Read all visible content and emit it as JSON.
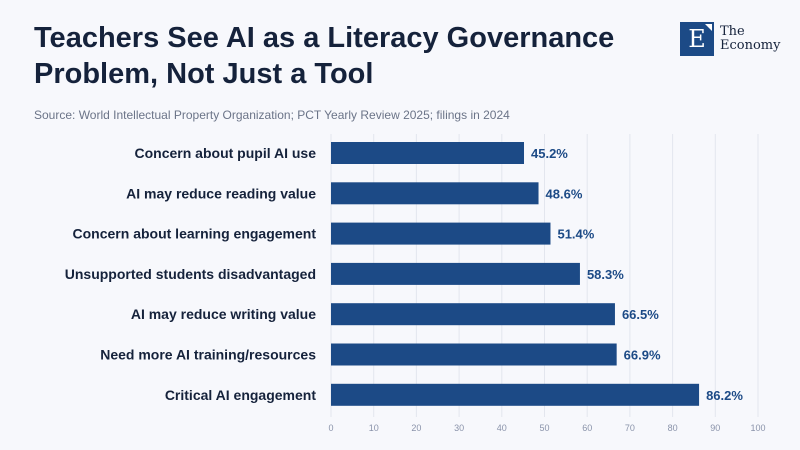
{
  "header": {
    "title": "Teachers See AI as a Literacy Governance Problem, Not Just a Tool",
    "source": "Source: World Intellectual Property Organization; PCT Yearly Review 2025; filings in 2024",
    "logo_letter": "E",
    "logo_line1": "The",
    "logo_line2": "Economy"
  },
  "colors": {
    "bar": "#1c4a86",
    "label": "#15223b",
    "value": "#1c4a86",
    "grid": "#e3e6ee",
    "tick": "#8a93aa"
  },
  "chart_data": {
    "type": "bar",
    "orientation": "horizontal",
    "categories": [
      "Concern about pupil AI use",
      "AI may reduce reading value",
      "Concern about learning engagement",
      "Unsupported students disadvantaged",
      "AI may reduce writing value",
      "Need more AI training/resources",
      "Critical AI engagement"
    ],
    "values": [
      45.2,
      48.6,
      51.4,
      58.3,
      66.5,
      66.9,
      86.2
    ],
    "value_labels": [
      "45.2%",
      "48.6%",
      "51.4%",
      "58.3%",
      "66.5%",
      "66.9%",
      "86.2%"
    ],
    "xlim": [
      0,
      100
    ],
    "xticks": [
      0,
      10,
      20,
      30,
      40,
      50,
      60,
      70,
      80,
      90,
      100
    ],
    "xtick_labels": [
      "0",
      "10",
      "20",
      "30",
      "40",
      "50",
      "60",
      "70",
      "80",
      "90",
      "100"
    ],
    "grid": true,
    "xlabel": "",
    "ylabel": ""
  }
}
